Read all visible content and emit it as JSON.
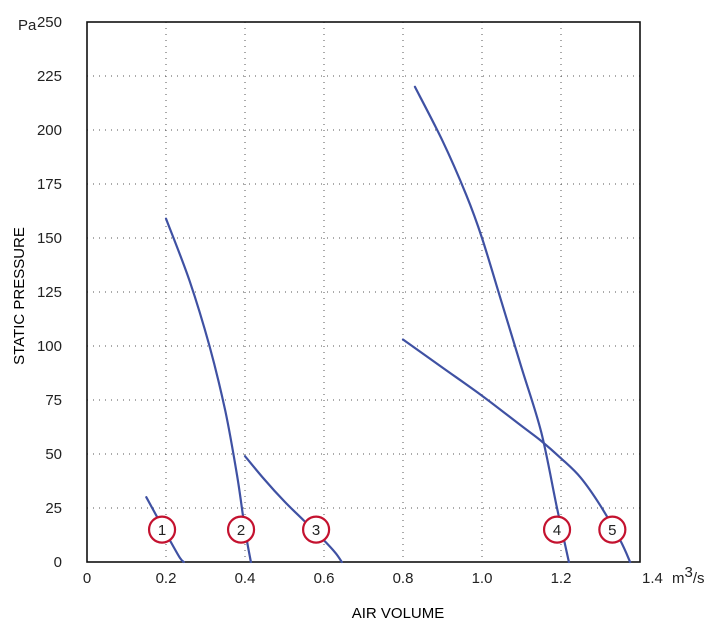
{
  "chart_data": {
    "type": "line",
    "xlabel": "AIR VOLUME",
    "ylabel": "STATIC PRESSURE",
    "x_unit": "m",
    "x_unit_exp": "3",
    "x_unit_tail": "/s",
    "y_unit": "Pa",
    "xlim": [
      0,
      1.4
    ],
    "ylim": [
      0,
      250
    ],
    "x_ticks": [
      0,
      0.2,
      0.4,
      0.6,
      0.8,
      1.0,
      1.2,
      1.4
    ],
    "x_tick_labels": [
      "0",
      "0.2",
      "0.4",
      "0.6",
      "0.8",
      "1.0",
      "1.2",
      "1.4"
    ],
    "y_ticks": [
      0,
      25,
      50,
      75,
      100,
      125,
      150,
      175,
      200,
      225,
      250
    ],
    "y_tick_labels": [
      "0",
      "25",
      "50",
      "75",
      "100",
      "125",
      "150",
      "175",
      "200",
      "225",
      "250"
    ],
    "grid": "dotted",
    "line_color": "#3f51a3",
    "marker_color": "#c4122f",
    "series": [
      {
        "label": "1",
        "marker": [
          0.19,
          15
        ],
        "x": [
          0.15,
          0.18,
          0.21,
          0.235,
          0.245
        ],
        "y": [
          30,
          20,
          10,
          2,
          0
        ]
      },
      {
        "label": "2",
        "marker": [
          0.39,
          15
        ],
        "x": [
          0.2,
          0.26,
          0.31,
          0.35,
          0.38,
          0.4,
          0.415
        ],
        "y": [
          159,
          130,
          100,
          70,
          40,
          15,
          0
        ]
      },
      {
        "label": "3",
        "marker": [
          0.58,
          15
        ],
        "x": [
          0.4,
          0.45,
          0.5,
          0.55,
          0.6,
          0.63,
          0.645
        ],
        "y": [
          49,
          38,
          28,
          19,
          10,
          4,
          0
        ]
      },
      {
        "label": "4",
        "marker": [
          1.19,
          15
        ],
        "x": [
          0.83,
          0.9,
          0.96,
          1.0,
          1.05,
          1.1,
          1.15,
          1.19,
          1.22
        ],
        "y": [
          220,
          195,
          170,
          150,
          120,
          90,
          60,
          25,
          0
        ]
      },
      {
        "label": "5",
        "marker": [
          1.33,
          15
        ],
        "x": [
          0.8,
          0.9,
          1.0,
          1.1,
          1.15,
          1.2,
          1.25,
          1.3,
          1.35,
          1.375
        ],
        "y": [
          103,
          90,
          77,
          63,
          56,
          48,
          39,
          26,
          10,
          0
        ]
      }
    ]
  }
}
